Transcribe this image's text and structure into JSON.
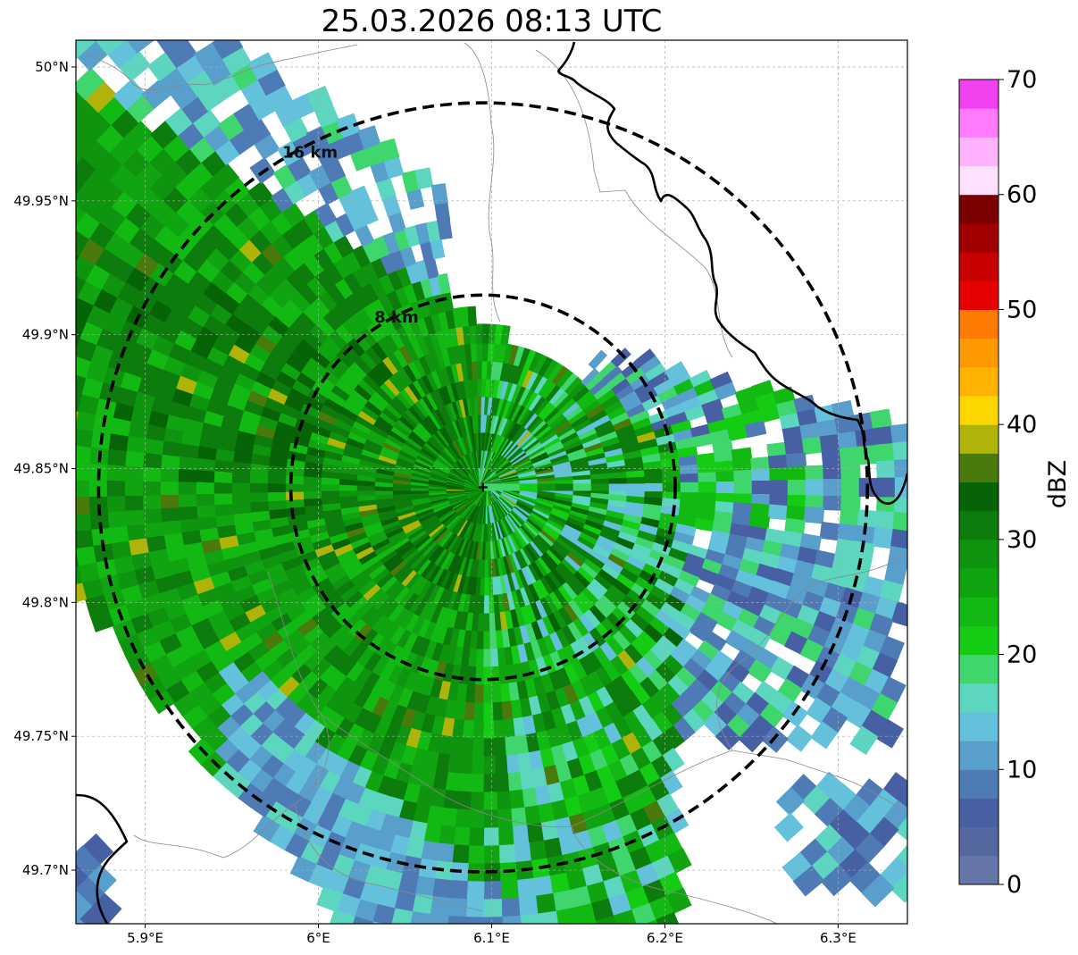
{
  "title": "25.03.2026 08:13 UTC",
  "map": {
    "lon_range": [
      5.86,
      6.34
    ],
    "lat_range": [
      49.68,
      50.01
    ],
    "radar_site": {
      "lon": 6.095,
      "lat": 49.843
    },
    "x_ticks": [
      {
        "value": 5.9,
        "label": "5.9°E"
      },
      {
        "value": 6.0,
        "label": "6°E"
      },
      {
        "value": 6.1,
        "label": "6.1°E"
      },
      {
        "value": 6.2,
        "label": "6.2°E"
      },
      {
        "value": 6.3,
        "label": "6.3°E"
      }
    ],
    "y_ticks": [
      {
        "value": 50.0,
        "label": "50°N"
      },
      {
        "value": 49.95,
        "label": "49.95°N"
      },
      {
        "value": 49.9,
        "label": "49.9°N"
      },
      {
        "value": 49.85,
        "label": "49.85°N"
      },
      {
        "value": 49.8,
        "label": "49.8°N"
      },
      {
        "value": 49.75,
        "label": "49.75°N"
      },
      {
        "value": 49.7,
        "label": "49.7°N"
      }
    ],
    "range_rings": [
      {
        "radius_km": 8,
        "label": "8 km"
      },
      {
        "radius_km": 16,
        "label": "16 km"
      }
    ]
  },
  "colorbar": {
    "label": "dBZ",
    "tick_labels": [
      "0",
      "10",
      "20",
      "30",
      "40",
      "50",
      "60",
      "70"
    ],
    "colors": [
      "#6477a8",
      "#55689f",
      "#4660a3",
      "#4e7bb5",
      "#58a0cb",
      "#64c1dc",
      "#5dd6c0",
      "#3fd66e",
      "#14cc14",
      "#13b913",
      "#10a510",
      "#0f940f",
      "#0c7c0c",
      "#066406",
      "#4a7a0c",
      "#b0b40a",
      "#ffd700",
      "#ffb300",
      "#ff9900",
      "#ff7a00",
      "#e60000",
      "#c80000",
      "#a00000",
      "#7a0000",
      "#ffe0ff",
      "#ffb3ff",
      "#ff7aff",
      "#f040f0"
    ]
  }
}
